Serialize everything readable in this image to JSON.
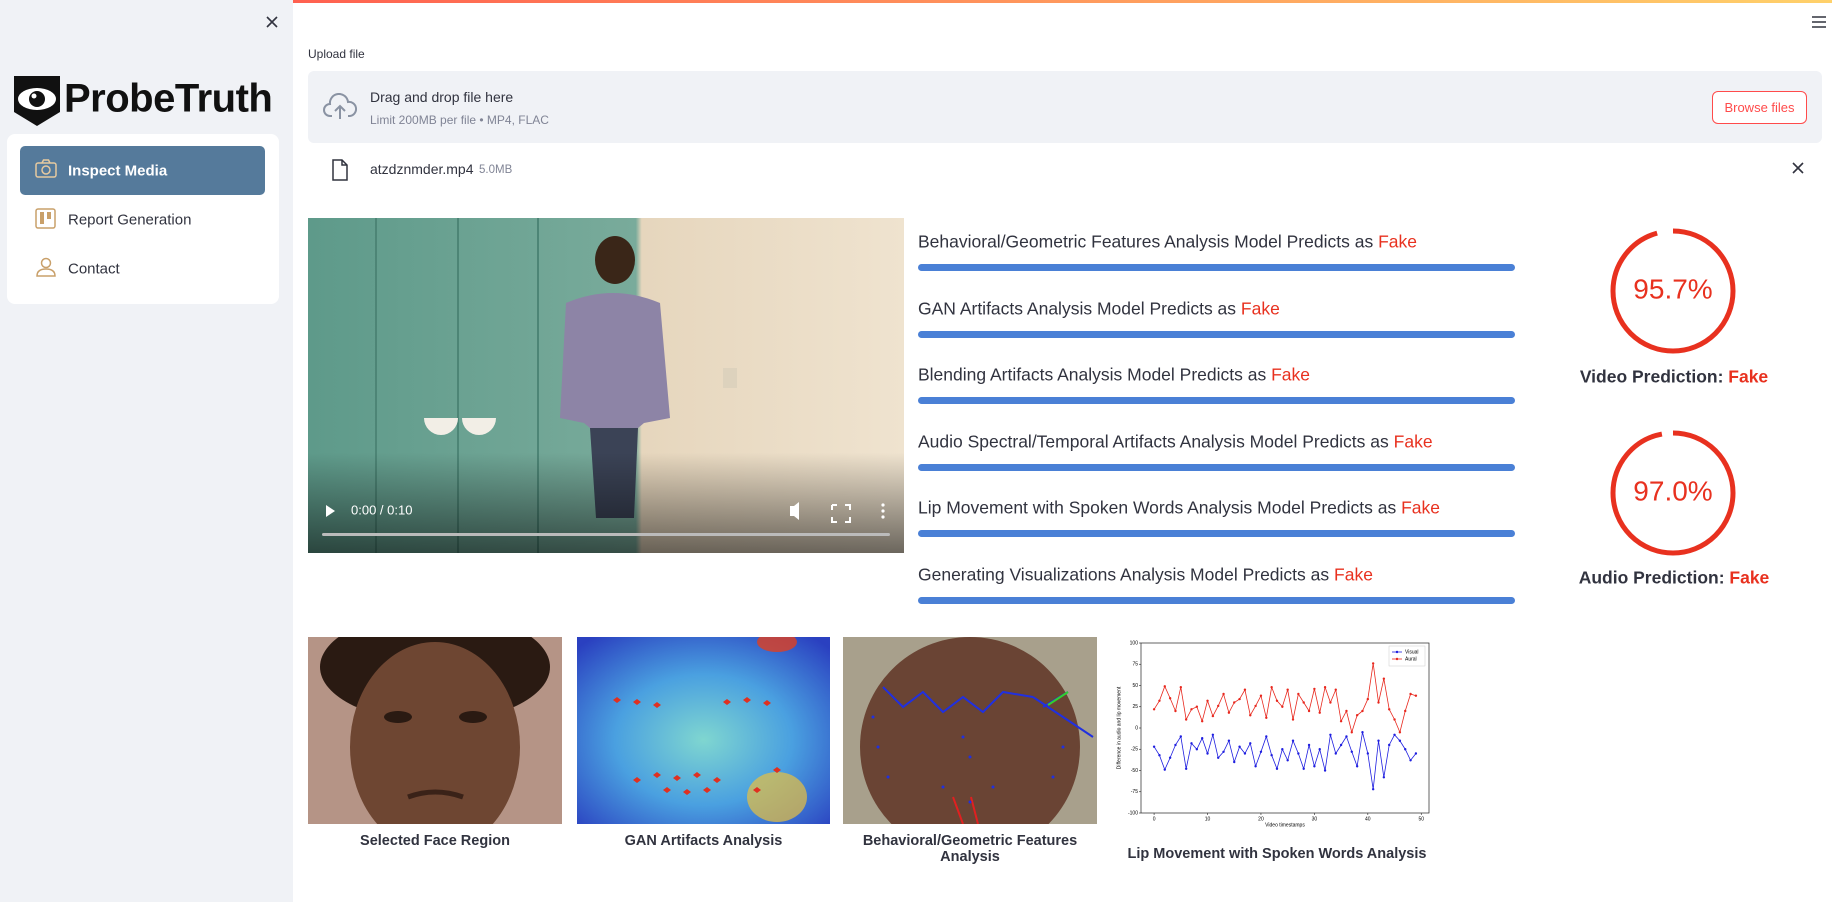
{
  "sidebar": {
    "logo": "ProbeTruth",
    "nav": [
      "Inspect Media",
      "Report Generation",
      "Contact"
    ]
  },
  "upload": {
    "label": "Upload file",
    "title": "Drag and drop file here",
    "hint": "Limit 200MB per file • MP4, FLAC",
    "button": "Browse files",
    "file_name": "atzdznmder.mp4",
    "file_size": "5.0MB"
  },
  "video": {
    "time": "0:00 / 0:10"
  },
  "predictions": [
    {
      "text": "Behavioral/Geometric Features Analysis Model Predicts as",
      "verdict": "Fake"
    },
    {
      "text": "GAN Artifacts Analysis Model Predicts as",
      "verdict": "Fake"
    },
    {
      "text": "Blending Artifacts Analysis Model Predicts as",
      "verdict": "Fake"
    },
    {
      "text": "Audio Spectral/Temporal Artifacts Analysis Model Predicts as",
      "verdict": "Fake"
    },
    {
      "text": "Lip Movement with Spoken Words Analysis Model Predicts as",
      "verdict": "Fake"
    },
    {
      "text": "Generating Visualizations Analysis Model Predicts as",
      "verdict": "Fake"
    }
  ],
  "gauges": [
    {
      "value": 95.7,
      "label": "95.7%",
      "caption": "Video Prediction:",
      "verdict": "Fake"
    },
    {
      "value": 97.0,
      "label": "97.0%",
      "caption": "Audio Prediction:",
      "verdict": "Fake"
    }
  ],
  "images": [
    "Selected Face Region",
    "GAN Artifacts Analysis",
    "Behavioral/Geometric Features Analysis"
  ],
  "chart_data": {
    "type": "line",
    "caption": "Lip Movement with Spoken Words Analysis",
    "x_label": "Video timestamps",
    "y_label": "Difference in audio and lip movement",
    "x": [
      0,
      1,
      2,
      3,
      4,
      5,
      6,
      7,
      8,
      9,
      10,
      11,
      12,
      13,
      14,
      15,
      16,
      17,
      18,
      19,
      20,
      21,
      22,
      23,
      24,
      25,
      26,
      27,
      28,
      29,
      30,
      31,
      32,
      33,
      34,
      35,
      36,
      37,
      38,
      39,
      40,
      41,
      42,
      43,
      44,
      45,
      46,
      47,
      48,
      49
    ],
    "series": [
      {
        "name": "Visual",
        "color": "#1f1fe0",
        "values": [
          -22,
          -32,
          -49,
          -35,
          -20,
          -10,
          -48,
          -18,
          -25,
          -12,
          -30,
          -8,
          -35,
          -28,
          -15,
          -40,
          -22,
          -30,
          -18,
          -45,
          -28,
          -10,
          -32,
          -48,
          -25,
          -38,
          -15,
          -30,
          -48,
          -20,
          -45,
          -25,
          -50,
          -8,
          -30,
          -20,
          -10,
          -28,
          -45,
          -5,
          -30,
          -72,
          -15,
          -58,
          -20,
          -8,
          -15,
          -25,
          -38,
          -30
        ]
      },
      {
        "name": "Aural",
        "color": "#e8281e",
        "values": [
          22,
          32,
          49,
          35,
          20,
          48,
          10,
          22,
          25,
          8,
          32,
          14,
          26,
          40,
          18,
          30,
          34,
          45,
          15,
          26,
          38,
          12,
          48,
          32,
          25,
          45,
          10,
          40,
          30,
          20,
          46,
          18,
          48,
          30,
          45,
          8,
          20,
          -5,
          15,
          20,
          34,
          76,
          30,
          58,
          22,
          10,
          -5,
          20,
          40,
          38
        ]
      }
    ],
    "xlim": [
      -2.45,
      51.45
    ],
    "xticks": [
      0,
      10,
      20,
      30,
      40,
      50
    ],
    "ylim": [
      -100,
      100
    ],
    "yticks": [
      -100,
      -75,
      -50,
      -25,
      0,
      25,
      50,
      75,
      100
    ],
    "legend": "upper right"
  }
}
